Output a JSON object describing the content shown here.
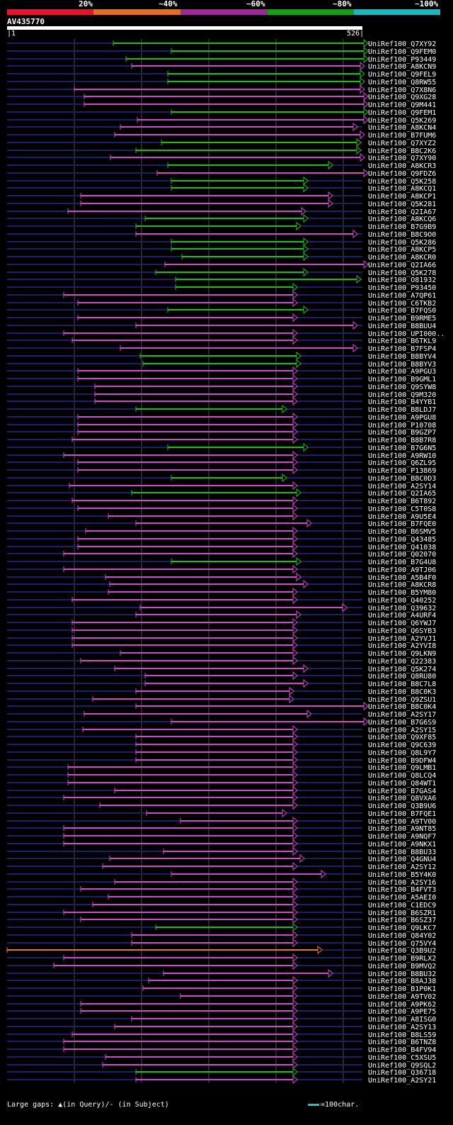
{
  "legend": {
    "labels": [
      "20%",
      "~40%",
      "~60%",
      "~80%",
      "~100%"
    ],
    "colors": [
      "#e8142c",
      "#e86e1e",
      "#a0289a",
      "#14a014",
      "#18b8c0"
    ]
  },
  "query": {
    "id": "AV435770",
    "start": "1",
    "end": "526"
  },
  "colors": {
    "magenta": "#d048d0",
    "green": "#18c018",
    "orange": "#e8781e",
    "track": "#1e1e6e",
    "marker": "#ffff66",
    "grid": "#505050"
  },
  "hits": [
    {
      "label": "UniRef100_Q7XY92",
      "start": 160,
      "end": 520,
      "color": "green"
    },
    {
      "label": "UniRef100_Q9FEM0",
      "start": 242,
      "end": 520,
      "color": "green"
    },
    {
      "label": "UniRef100_P93449",
      "start": 178,
      "end": 520,
      "color": "green"
    },
    {
      "label": "UniRef100_A8KCN9",
      "start": 186,
      "end": 515,
      "color": "magenta"
    },
    {
      "label": "UniRef100_Q9FEL9",
      "start": 237,
      "end": 515,
      "color": "green"
    },
    {
      "label": "UniRef100_Q8RW55",
      "start": 237,
      "end": 515,
      "color": "green"
    },
    {
      "label": "UniRef100_Q7X8N6",
      "start": 105,
      "end": 515,
      "color": "magenta"
    },
    {
      "label": "UniRef100_Q9XG28",
      "start": 119,
      "end": 520,
      "color": "magenta"
    },
    {
      "label": "UniRef100_Q9M441",
      "start": 119,
      "end": 520,
      "color": "magenta"
    },
    {
      "label": "UniRef100_Q9FEM1",
      "start": 242,
      "end": 520,
      "color": "green"
    },
    {
      "label": "UniRef100_Q5K269",
      "start": 194,
      "end": 520,
      "color": "magenta"
    },
    {
      "label": "UniRef100_A8KCN4",
      "start": 170,
      "end": 505,
      "color": "magenta"
    },
    {
      "label": "UniRef100_B7FUM6",
      "start": 162,
      "end": 515,
      "color": "magenta"
    },
    {
      "label": "UniRef100_Q7XYZ2",
      "start": 228,
      "end": 510,
      "color": "green"
    },
    {
      "label": "UniRef100_B8C2K6",
      "start": 192,
      "end": 510,
      "color": "green"
    },
    {
      "label": "UniRef100_Q7XY90",
      "start": 156,
      "end": 515,
      "color": "magenta"
    },
    {
      "label": "UniRef100_A8KCR3",
      "start": 237,
      "end": 470,
      "color": "green"
    },
    {
      "label": "UniRef100_Q9FDZ6",
      "start": 222,
      "end": 520,
      "color": "magenta"
    },
    {
      "label": "UniRef100_Q5K258",
      "start": 242,
      "end": 435,
      "color": "green"
    },
    {
      "label": "UniRef100_A8KCQ1",
      "start": 242,
      "end": 435,
      "color": "green"
    },
    {
      "label": "UniRef100_A8KCP1",
      "start": 114,
      "end": 470,
      "color": "magenta"
    },
    {
      "label": "UniRef100_Q5K281",
      "start": 114,
      "end": 470,
      "color": "magenta"
    },
    {
      "label": "UniRef100_Q2IA67",
      "start": 96,
      "end": 432,
      "color": "magenta"
    },
    {
      "label": "UniRef100_A8KCQ6",
      "start": 205,
      "end": 435,
      "color": "green"
    },
    {
      "label": "UniRef100_B7G9B9",
      "start": 192,
      "end": 425,
      "color": "green"
    },
    {
      "label": "UniRef100_B8C9O0",
      "start": 192,
      "end": 505,
      "color": "magenta"
    },
    {
      "label": "UniRef100_Q5K286",
      "start": 242,
      "end": 435,
      "color": "green"
    },
    {
      "label": "UniRef100_A8KCP5",
      "start": 242,
      "end": 435,
      "color": "green"
    },
    {
      "label": "UniRef100_A8KCR0",
      "start": 257,
      "end": 435,
      "color": "green"
    },
    {
      "label": "UniRef100_Q2IA66",
      "start": 233,
      "end": 520,
      "color": "magenta"
    },
    {
      "label": "UniRef100_Q5K278",
      "start": 220,
      "end": 435,
      "color": "green"
    },
    {
      "label": "UniRef100_O81932",
      "start": 248,
      "end": 510,
      "color": "green"
    },
    {
      "label": "UniRef100_P93450",
      "start": 248,
      "end": 420,
      "color": "green"
    },
    {
      "label": "UniRef100_A7QP61",
      "start": 90,
      "end": 420,
      "color": "magenta"
    },
    {
      "label": "UniRef100_C6TKB2",
      "start": 110,
      "end": 420,
      "color": "magenta"
    },
    {
      "label": "UniRef100_B7FQS0",
      "start": 237,
      "end": 435,
      "color": "green"
    },
    {
      "label": "UniRef100_B9RME5",
      "start": 110,
      "end": 420,
      "color": "magenta"
    },
    {
      "label": "UniRef100_B8BUU4",
      "start": 192,
      "end": 505,
      "color": "magenta"
    },
    {
      "label": "UniRef100_UPI000..",
      "start": 90,
      "end": 420,
      "color": "magenta"
    },
    {
      "label": "UniRef100_B6TKL9",
      "start": 102,
      "end": 420,
      "color": "magenta"
    },
    {
      "label": "UniRef100_B7FSP4",
      "start": 170,
      "end": 505,
      "color": "magenta"
    },
    {
      "label": "UniRef100_B8BYV4",
      "start": 198,
      "end": 425,
      "color": "green"
    },
    {
      "label": "UniRef100_B8BYV3",
      "start": 202,
      "end": 425,
      "color": "green"
    },
    {
      "label": "UniRef100_A9PGU3",
      "start": 110,
      "end": 420,
      "color": "magenta"
    },
    {
      "label": "UniRef100_B9GML1",
      "start": 110,
      "end": 420,
      "color": "magenta"
    },
    {
      "label": "UniRef100_Q9SYW8",
      "start": 134,
      "end": 420,
      "color": "magenta"
    },
    {
      "label": "UniRef100_Q9M320",
      "start": 134,
      "end": 420,
      "color": "magenta"
    },
    {
      "label": "UniRef100_B4YYB1",
      "start": 134,
      "end": 420,
      "color": "magenta"
    },
    {
      "label": "UniRef100_B8LDJ7",
      "start": 192,
      "end": 405,
      "color": "green"
    },
    {
      "label": "UniRef100_A9PGU8",
      "start": 110,
      "end": 420,
      "color": "magenta"
    },
    {
      "label": "UniRef100_P10708",
      "start": 110,
      "end": 420,
      "color": "magenta"
    },
    {
      "label": "UniRef100_B9GZP7",
      "start": 110,
      "end": 420,
      "color": "magenta"
    },
    {
      "label": "UniRef100_B8B7R8",
      "start": 102,
      "end": 420,
      "color": "magenta"
    },
    {
      "label": "UniRef100_B7G6N5",
      "start": 237,
      "end": 435,
      "color": "green"
    },
    {
      "label": "UniRef100_A9RW10",
      "start": 90,
      "end": 420,
      "color": "magenta"
    },
    {
      "label": "UniRef100_Q6ZL95",
      "start": 110,
      "end": 420,
      "color": "magenta"
    },
    {
      "label": "UniRef100_P13869",
      "start": 110,
      "end": 420,
      "color": "magenta"
    },
    {
      "label": "UniRef100_B8C0D3",
      "start": 242,
      "end": 405,
      "color": "green"
    },
    {
      "label": "UniRef100_A2SY14",
      "start": 98,
      "end": 420,
      "color": "magenta"
    },
    {
      "label": "UniRef100_Q2IA65",
      "start": 186,
      "end": 425,
      "color": "green"
    },
    {
      "label": "UniRef100_B6T892",
      "start": 102,
      "end": 420,
      "color": "magenta"
    },
    {
      "label": "UniRef100_C5T0S8",
      "start": 110,
      "end": 420,
      "color": "magenta"
    },
    {
      "label": "UniRef100_A9U5E4",
      "start": 153,
      "end": 420,
      "color": "magenta"
    },
    {
      "label": "UniRef100_B7FQE0",
      "start": 192,
      "end": 440,
      "color": "magenta"
    },
    {
      "label": "UniRef100_B6SMV5",
      "start": 121,
      "end": 420,
      "color": "magenta"
    },
    {
      "label": "UniRef100_Q43485",
      "start": 110,
      "end": 420,
      "color": "magenta"
    },
    {
      "label": "UniRef100_Q41038",
      "start": 110,
      "end": 420,
      "color": "magenta"
    },
    {
      "label": "UniRef100_Q02070",
      "start": 90,
      "end": 420,
      "color": "magenta"
    },
    {
      "label": "UniRef100_B7G4U8",
      "start": 242,
      "end": 425,
      "color": "green"
    },
    {
      "label": "UniRef100_A9TJ06",
      "start": 90,
      "end": 420,
      "color": "magenta"
    },
    {
      "label": "UniRef100_A5B4F0",
      "start": 149,
      "end": 425,
      "color": "magenta"
    },
    {
      "label": "UniRef100_A8KCR8",
      "start": 155,
      "end": 435,
      "color": "magenta"
    },
    {
      "label": "UniRef100_B5YM80",
      "start": 153,
      "end": 420,
      "color": "magenta"
    },
    {
      "label": "UniRef100_Q40252",
      "start": 102,
      "end": 420,
      "color": "magenta"
    },
    {
      "label": "UniRef100_Q39632",
      "start": 198,
      "end": 490,
      "color": "magenta"
    },
    {
      "label": "UniRef100_A4URF4",
      "start": 192,
      "end": 425,
      "color": "magenta"
    },
    {
      "label": "UniRef100_Q6YWJ7",
      "start": 102,
      "end": 420,
      "color": "magenta"
    },
    {
      "label": "UniRef100_Q6SYB3",
      "start": 102,
      "end": 420,
      "color": "magenta"
    },
    {
      "label": "UniRef100_A2YVJ1",
      "start": 102,
      "end": 420,
      "color": "magenta"
    },
    {
      "label": "UniRef100_A2YVI8",
      "start": 102,
      "end": 420,
      "color": "magenta"
    },
    {
      "label": "UniRef100_Q9LKN9",
      "start": 170,
      "end": 420,
      "color": "magenta"
    },
    {
      "label": "UniRef100_Q22383",
      "start": 114,
      "end": 420,
      "color": "magenta"
    },
    {
      "label": "UniRef100_Q5K274",
      "start": 162,
      "end": 435,
      "color": "magenta"
    },
    {
      "label": "UniRef100_Q8RU80",
      "start": 205,
      "end": 420,
      "color": "magenta"
    },
    {
      "label": "UniRef100_B8C7L8",
      "start": 205,
      "end": 435,
      "color": "magenta"
    },
    {
      "label": "UniRef100_B8C0K3",
      "start": 192,
      "end": 415,
      "color": "magenta"
    },
    {
      "label": "UniRef100_Q9ZSU1",
      "start": 131,
      "end": 415,
      "color": "magenta"
    },
    {
      "label": "UniRef100_B8C0K4",
      "start": 192,
      "end": 520,
      "color": "magenta"
    },
    {
      "label": "UniRef100_A2SY17",
      "start": 119,
      "end": 440,
      "color": "magenta"
    },
    {
      "label": "UniRef100_B7G6S9",
      "start": 242,
      "end": 520,
      "color": "magenta"
    },
    {
      "label": "UniRef100_A2SY15",
      "start": 117,
      "end": 420,
      "color": "magenta"
    },
    {
      "label": "UniRef100_Q9XF85",
      "start": 192,
      "end": 420,
      "color": "magenta"
    },
    {
      "label": "UniRef100_Q9C639",
      "start": 192,
      "end": 420,
      "color": "magenta"
    },
    {
      "label": "UniRef100_Q8L9Y7",
      "start": 192,
      "end": 420,
      "color": "magenta"
    },
    {
      "label": "UniRef100_B9DFW4",
      "start": 192,
      "end": 420,
      "color": "magenta"
    },
    {
      "label": "UniRef100_Q9LMB1",
      "start": 96,
      "end": 420,
      "color": "magenta"
    },
    {
      "label": "UniRef100_Q8LCQ4",
      "start": 96,
      "end": 420,
      "color": "magenta"
    },
    {
      "label": "UniRef100_Q84WT1",
      "start": 96,
      "end": 420,
      "color": "magenta"
    },
    {
      "label": "UniRef100_B7GAS4",
      "start": 162,
      "end": 420,
      "color": "magenta"
    },
    {
      "label": "UniRef100_Q8VXA6",
      "start": 90,
      "end": 420,
      "color": "magenta"
    },
    {
      "label": "UniRef100_Q3B9U6",
      "start": 141,
      "end": 420,
      "color": "magenta"
    },
    {
      "label": "UniRef100_B7FQE1",
      "start": 207,
      "end": 405,
      "color": "magenta"
    },
    {
      "label": "UniRef100_A9TV00",
      "start": 255,
      "end": 420,
      "color": "magenta"
    },
    {
      "label": "UniRef100_A9NT85",
      "start": 90,
      "end": 420,
      "color": "magenta"
    },
    {
      "label": "UniRef100_A9NQF7",
      "start": 90,
      "end": 420,
      "color": "magenta"
    },
    {
      "label": "UniRef100_A9NKX1",
      "start": 90,
      "end": 420,
      "color": "magenta"
    },
    {
      "label": "UniRef100_B8BU33",
      "start": 231,
      "end": 420,
      "color": "magenta"
    },
    {
      "label": "UniRef100_Q4GNU4",
      "start": 155,
      "end": 430,
      "color": "magenta"
    },
    {
      "label": "UniRef100_A2SY12",
      "start": 145,
      "end": 420,
      "color": "magenta"
    },
    {
      "label": "UniRef100_B5Y4K0",
      "start": 242,
      "end": 460,
      "color": "magenta"
    },
    {
      "label": "UniRef100_A2SY16",
      "start": 162,
      "end": 420,
      "color": "magenta"
    },
    {
      "label": "UniRef100_B4FVT3",
      "start": 114,
      "end": 420,
      "color": "magenta"
    },
    {
      "label": "UniRef100_A5AEI0",
      "start": 153,
      "end": 420,
      "color": "magenta"
    },
    {
      "label": "UniRef100_C1EDC9",
      "start": 131,
      "end": 420,
      "color": "magenta"
    },
    {
      "label": "UniRef100_B6SZR1",
      "start": 90,
      "end": 420,
      "color": "magenta"
    },
    {
      "label": "UniRef100_B6SZ37",
      "start": 114,
      "end": 420,
      "color": "magenta"
    },
    {
      "label": "UniRef100_Q9LKC7",
      "start": 220,
      "end": 420,
      "color": "green"
    },
    {
      "label": "UniRef100_Q84Y02",
      "start": 186,
      "end": 420,
      "color": "magenta"
    },
    {
      "label": "UniRef100_Q75VY4",
      "start": 186,
      "end": 420,
      "color": "magenta"
    },
    {
      "label": "UniRef100_Q3B9U2",
      "start": 10,
      "end": 455,
      "color": "orange"
    },
    {
      "label": "UniRef100_B9RLX2",
      "start": 90,
      "end": 420,
      "color": "magenta"
    },
    {
      "label": "UniRef100_B9MVQ2",
      "start": 76,
      "end": 420,
      "color": "magenta"
    },
    {
      "label": "UniRef100_B8BU32",
      "start": 231,
      "end": 470,
      "color": "magenta"
    },
    {
      "label": "UniRef100_B8AJ38",
      "start": 210,
      "end": 420,
      "color": "magenta"
    },
    {
      "label": "UniRef100_B1P0K1",
      "start": 202,
      "end": 420,
      "color": "magenta"
    },
    {
      "label": "UniRef100_A9TV02",
      "start": 255,
      "end": 420,
      "color": "magenta"
    },
    {
      "label": "UniRef100_A9PK62",
      "start": 114,
      "end": 420,
      "color": "magenta"
    },
    {
      "label": "UniRef100_A9PE75",
      "start": 114,
      "end": 420,
      "color": "magenta"
    },
    {
      "label": "UniRef100_A8ISG0",
      "start": 186,
      "end": 420,
      "color": "magenta"
    },
    {
      "label": "UniRef100_A2SY13",
      "start": 162,
      "end": 420,
      "color": "magenta"
    },
    {
      "label": "UniRef100_B8LS59",
      "start": 102,
      "end": 420,
      "color": "magenta"
    },
    {
      "label": "UniRef100_B6TNZ8",
      "start": 90,
      "end": 420,
      "color": "magenta"
    },
    {
      "label": "UniRef100_B4FV94",
      "start": 90,
      "end": 420,
      "color": "magenta"
    },
    {
      "label": "UniRef100_C5XSU5",
      "start": 149,
      "end": 420,
      "color": "magenta"
    },
    {
      "label": "UniRef100_Q9SQL2",
      "start": 145,
      "end": 420,
      "color": "magenta"
    },
    {
      "label": "UniRef100_Q36718",
      "start": 192,
      "end": 420,
      "color": "green"
    },
    {
      "label": "UniRef100_A2SY21",
      "start": 192,
      "end": 420,
      "color": "magenta"
    }
  ],
  "footer": {
    "left": "Large gaps: ▲(in Query)/- (in Subject)",
    "right": "=100char."
  }
}
